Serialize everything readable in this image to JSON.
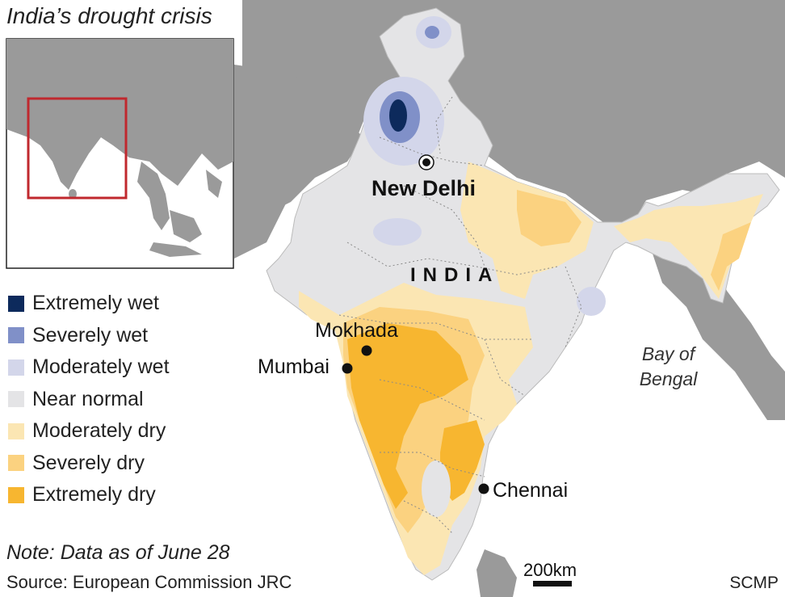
{
  "title": "India’s drought crisis",
  "colors": {
    "extremely_wet": "#0d2a5c",
    "severely_wet": "#8090c8",
    "moderately_wet": "#d3d6ea",
    "near_normal": "#e4e4e6",
    "moderately_dry": "#fbe6b3",
    "severely_dry": "#fbd280",
    "extremely_dry": "#f7b630",
    "land_other": "#9a9a9a",
    "sea": "#ffffff",
    "inset_box": "#c0282e"
  },
  "legend": [
    {
      "label": "Extremely wet",
      "color": "#0d2a5c"
    },
    {
      "label": "Severely wet",
      "color": "#8090c8"
    },
    {
      "label": "Moderately wet",
      "color": "#d3d6ea"
    },
    {
      "label": "Near normal",
      "color": "#e4e4e6"
    },
    {
      "label": "Moderately dry",
      "color": "#fbe6b3"
    },
    {
      "label": "Severely dry",
      "color": "#fbd280"
    },
    {
      "label": "Extremely dry",
      "color": "#f7b630"
    }
  ],
  "labels": {
    "capital": "New Delhi",
    "country": "INDIA",
    "mokhada": "Mokhada",
    "mumbai": "Mumbai",
    "chennai": "Chennai",
    "sea_line1": "Bay of",
    "sea_line2": "Bengal"
  },
  "scale": {
    "label": "200km"
  },
  "note": "Note: Data as of June 28",
  "source": "Source: European Commission JRC",
  "credit": "SCMP"
}
